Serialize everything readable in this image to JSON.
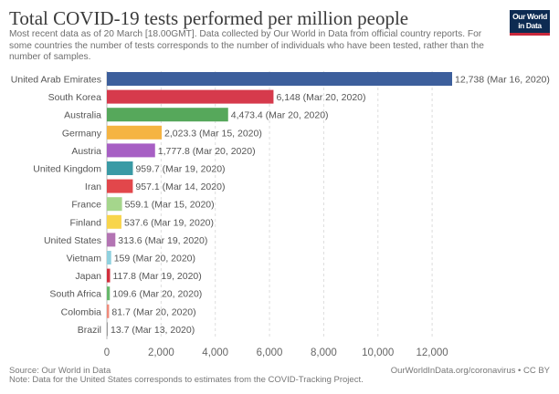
{
  "header": {
    "title": "Total COVID-19 tests performed per million people",
    "subtitle": "Most recent data as of 20 March [18.00GMT]. Data collected by Our World in Data from official country reports. For some countries the number of tests corresponds to the number of individuals who have been tested, rather than the number of samples.",
    "logo_text": "Our World in Data"
  },
  "footer": {
    "source": "Source: Our World in Data",
    "note": "Note: Data for the United States corresponds to estimates from the COVID-Tracking Project.",
    "link": "OurWorldInData.org/coronavirus • CC BY"
  },
  "chart_data": {
    "type": "bar",
    "orientation": "horizontal",
    "title": "Total COVID-19 tests performed per million people",
    "xlim": [
      0,
      12738
    ],
    "x_ticks": [
      0,
      2000,
      4000,
      6000,
      8000,
      10000,
      12000
    ],
    "x_tick_labels": [
      "0",
      "2,000",
      "4,000",
      "6,000",
      "8,000",
      "10,000",
      "12,000"
    ],
    "grid": "vertical dashed",
    "categories": [
      "United Arab Emirates",
      "South Korea",
      "Australia",
      "Germany",
      "Austria",
      "United Kingdom",
      "Iran",
      "France",
      "Finland",
      "United States",
      "Vietnam",
      "Japan",
      "South Africa",
      "Colombia",
      "Brazil"
    ],
    "values": [
      12738,
      6148,
      4473.4,
      2023.3,
      1777.8,
      959.7,
      957.1,
      559.1,
      537.6,
      313.6,
      159,
      117.8,
      109.6,
      81.7,
      13.7
    ],
    "data_labels": [
      "12,738 (Mar 16, 2020)",
      "6,148 (Mar 20, 2020)",
      "4,473.4 (Mar 20, 2020)",
      "2,023.3 (Mar 15, 2020)",
      "1,777.8 (Mar 20, 2020)",
      "959.7 (Mar 19, 2020)",
      "957.1 (Mar 14, 2020)",
      "559.1 (Mar 15, 2020)",
      "537.6 (Mar 19, 2020)",
      "313.6 (Mar 19, 2020)",
      "159 (Mar 20, 2020)",
      "117.8 (Mar 19, 2020)",
      "109.6 (Mar 20, 2020)",
      "81.7 (Mar 20, 2020)",
      "13.7 (Mar 13, 2020)"
    ],
    "colors": [
      "#3d5f9c",
      "#d63a4c",
      "#56a85b",
      "#f5b442",
      "#a75fc4",
      "#3a9aa5",
      "#e2474b",
      "#a5d68c",
      "#f8d54c",
      "#b374b3",
      "#8fd1df",
      "#d22f3d",
      "#67b86b",
      "#f08a7a",
      "#9a9a9a"
    ]
  }
}
